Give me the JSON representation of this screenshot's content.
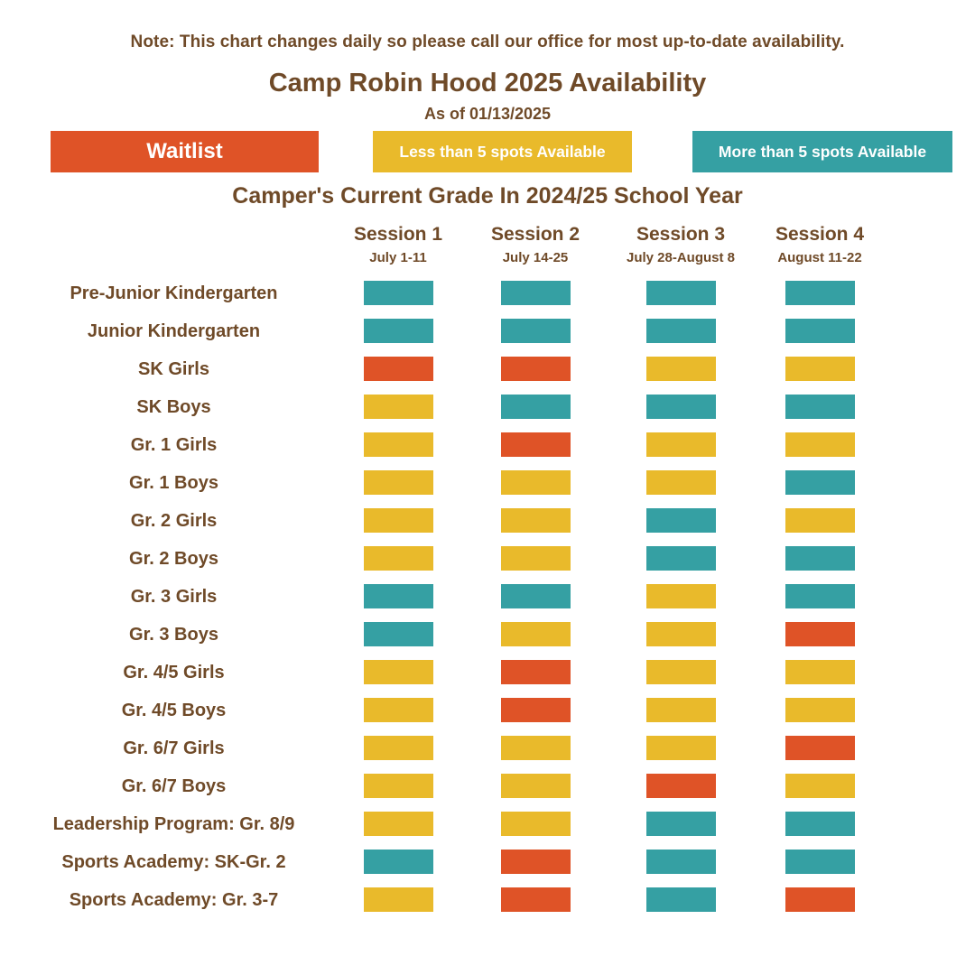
{
  "note": "Note: This chart changes daily so please call our office for most up-to-date availability.",
  "title": "Camp Robin Hood 2025 Availability",
  "as_of": "As of 01/13/2025",
  "grade_header": "Camper's Current Grade In 2024/25 School Year",
  "colors": {
    "text_brown": "#6F4A28",
    "waitlist": "#DF5327",
    "less_than_5": "#E9BA2B",
    "more_than_5": "#35A0A3"
  },
  "legend": [
    {
      "key": "waitlist",
      "label": "Waitlist"
    },
    {
      "key": "less_than_5",
      "label": "Less than 5 spots Available"
    },
    {
      "key": "more_than_5",
      "label": "More than 5 spots Available"
    }
  ],
  "chart_data": {
    "type": "heatmap",
    "value_legend": {
      "waitlist": "Waitlist",
      "less_than_5": "Less than 5 spots Available",
      "more_than_5": "More than 5 spots Available"
    },
    "columns": [
      {
        "name": "Session 1",
        "dates": "July 1-11"
      },
      {
        "name": "Session 2",
        "dates": "July 14-25"
      },
      {
        "name": "Session 3",
        "dates": "July 28-August 8"
      },
      {
        "name": "Session 4",
        "dates": "August 11-22"
      }
    ],
    "rows": [
      {
        "label": "Pre-Junior Kindergarten",
        "values": [
          "more_than_5",
          "more_than_5",
          "more_than_5",
          "more_than_5"
        ]
      },
      {
        "label": "Junior Kindergarten",
        "values": [
          "more_than_5",
          "more_than_5",
          "more_than_5",
          "more_than_5"
        ]
      },
      {
        "label": "SK Girls",
        "values": [
          "waitlist",
          "waitlist",
          "less_than_5",
          "less_than_5"
        ]
      },
      {
        "label": "SK Boys",
        "values": [
          "less_than_5",
          "more_than_5",
          "more_than_5",
          "more_than_5"
        ]
      },
      {
        "label": "Gr. 1 Girls",
        "values": [
          "less_than_5",
          "waitlist",
          "less_than_5",
          "less_than_5"
        ]
      },
      {
        "label": "Gr. 1 Boys",
        "values": [
          "less_than_5",
          "less_than_5",
          "less_than_5",
          "more_than_5"
        ]
      },
      {
        "label": "Gr. 2 Girls",
        "values": [
          "less_than_5",
          "less_than_5",
          "more_than_5",
          "less_than_5"
        ]
      },
      {
        "label": "Gr. 2 Boys",
        "values": [
          "less_than_5",
          "less_than_5",
          "more_than_5",
          "more_than_5"
        ]
      },
      {
        "label": "Gr. 3 Girls",
        "values": [
          "more_than_5",
          "more_than_5",
          "less_than_5",
          "more_than_5"
        ]
      },
      {
        "label": "Gr. 3 Boys",
        "values": [
          "more_than_5",
          "less_than_5",
          "less_than_5",
          "waitlist"
        ]
      },
      {
        "label": "Gr. 4/5 Girls",
        "values": [
          "less_than_5",
          "waitlist",
          "less_than_5",
          "less_than_5"
        ]
      },
      {
        "label": "Gr. 4/5 Boys",
        "values": [
          "less_than_5",
          "waitlist",
          "less_than_5",
          "less_than_5"
        ]
      },
      {
        "label": "Gr. 6/7 Girls",
        "values": [
          "less_than_5",
          "less_than_5",
          "less_than_5",
          "waitlist"
        ]
      },
      {
        "label": "Gr. 6/7 Boys",
        "values": [
          "less_than_5",
          "less_than_5",
          "waitlist",
          "less_than_5"
        ]
      },
      {
        "label": "Leadership Program: Gr. 8/9",
        "values": [
          "less_than_5",
          "less_than_5",
          "more_than_5",
          "more_than_5"
        ]
      },
      {
        "label": "Sports Academy: SK-Gr. 2",
        "values": [
          "more_than_5",
          "waitlist",
          "more_than_5",
          "more_than_5"
        ]
      },
      {
        "label": "Sports Academy: Gr. 3-7",
        "values": [
          "less_than_5",
          "waitlist",
          "more_than_5",
          "waitlist"
        ]
      }
    ]
  }
}
